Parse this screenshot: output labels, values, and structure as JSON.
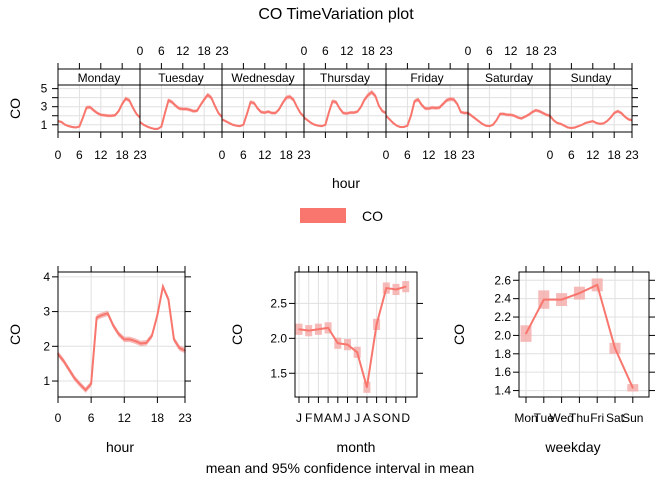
{
  "title": "CO TimeVariation plot",
  "footer": "mean and 95% confidence interval in mean",
  "legend": {
    "label": "CO",
    "position": "top-center"
  },
  "colors": {
    "line": "#F8766D",
    "ci": "#F4A9A6",
    "grid": "#E0E0E0",
    "axis": "#000000"
  },
  "chart_data": [
    {
      "type": "line",
      "name": "day-hour",
      "xlabel": "hour",
      "ylabel": "CO",
      "ylim": [
        0.2,
        5.4
      ],
      "yticks": [
        1,
        3,
        5
      ],
      "xticks": [
        0,
        6,
        12,
        18,
        23
      ],
      "grid": true,
      "ci_halfwidth": 0.15,
      "panels": [
        {
          "day": "Monday",
          "values": [
            1.4,
            1.3,
            1.0,
            0.85,
            0.75,
            0.7,
            0.8,
            1.8,
            2.9,
            2.95,
            2.6,
            2.3,
            2.1,
            2.05,
            2.0,
            2.0,
            2.05,
            2.5,
            3.3,
            3.9,
            3.7,
            2.9,
            2.2,
            1.8
          ]
        },
        {
          "day": "Tuesday",
          "values": [
            1.3,
            1.0,
            0.8,
            0.65,
            0.55,
            0.55,
            0.8,
            2.3,
            3.7,
            3.5,
            3.1,
            2.8,
            2.75,
            2.75,
            2.65,
            2.5,
            2.55,
            3.2,
            3.8,
            4.3,
            4.0,
            3.1,
            2.3,
            1.85
          ]
        },
        {
          "day": "Wednesday",
          "values": [
            1.6,
            1.4,
            1.2,
            1.0,
            0.9,
            0.85,
            1.0,
            2.2,
            3.5,
            3.4,
            2.8,
            2.4,
            2.35,
            2.45,
            2.3,
            2.3,
            2.7,
            3.4,
            4.0,
            4.1,
            3.8,
            3.0,
            2.3,
            1.9
          ]
        },
        {
          "day": "Thursday",
          "values": [
            1.8,
            1.5,
            1.2,
            1.0,
            0.9,
            0.85,
            1.0,
            2.4,
            3.6,
            3.5,
            2.8,
            2.3,
            2.25,
            2.35,
            2.35,
            2.45,
            3.0,
            3.8,
            4.3,
            4.6,
            4.2,
            3.1,
            2.5,
            2.3
          ]
        },
        {
          "day": "Friday",
          "values": [
            2.0,
            1.6,
            1.2,
            0.9,
            0.75,
            0.75,
            0.9,
            2.0,
            3.6,
            3.8,
            3.2,
            2.8,
            2.8,
            2.9,
            2.85,
            2.9,
            3.3,
            3.7,
            3.85,
            3.8,
            3.3,
            2.4,
            2.3,
            2.3
          ]
        },
        {
          "day": "Saturday",
          "values": [
            2.3,
            2.0,
            1.7,
            1.4,
            1.1,
            0.9,
            0.85,
            1.0,
            1.5,
            2.2,
            2.2,
            2.1,
            2.1,
            2.0,
            1.8,
            1.7,
            1.9,
            2.1,
            2.4,
            2.6,
            2.5,
            2.3,
            2.1,
            2.0
          ]
        },
        {
          "day": "Sunday",
          "values": [
            2.0,
            1.5,
            1.2,
            1.1,
            0.9,
            0.7,
            0.65,
            0.7,
            0.85,
            1.0,
            1.2,
            1.3,
            1.4,
            1.2,
            1.1,
            1.15,
            1.4,
            1.8,
            2.3,
            2.5,
            2.3,
            1.9,
            1.6,
            1.5
          ]
        }
      ]
    },
    {
      "type": "line",
      "name": "hour",
      "xlabel": "hour",
      "ylabel": "CO",
      "ylim": [
        0.54,
        4.14
      ],
      "yticks": [
        1,
        2,
        3,
        4
      ],
      "xticks": [
        0,
        6,
        12,
        18,
        23
      ],
      "grid": true,
      "ci_halfwidth": 0.08,
      "x": [
        0,
        1,
        2,
        3,
        4,
        5,
        6,
        7,
        8,
        9,
        10,
        11,
        12,
        13,
        14,
        15,
        16,
        17,
        18,
        19,
        20,
        21,
        22,
        23
      ],
      "values": [
        1.78,
        1.58,
        1.33,
        1.08,
        0.9,
        0.74,
        0.92,
        2.83,
        2.9,
        2.95,
        2.6,
        2.35,
        2.2,
        2.2,
        2.15,
        2.08,
        2.1,
        2.3,
        2.9,
        3.72,
        3.35,
        2.2,
        1.95,
        1.88
      ]
    },
    {
      "type": "line",
      "name": "month",
      "xlabel": "month",
      "ylabel": "CO",
      "ylim": [
        1.16,
        2.95
      ],
      "yticks": [
        1.5,
        2.0,
        2.5
      ],
      "ytick_labels": [
        "1.5",
        "2.0",
        "2.5"
      ],
      "grid": true,
      "categories": [
        "J",
        "F",
        "M",
        "A",
        "M",
        "J",
        "J",
        "A",
        "S",
        "O",
        "N",
        "D"
      ],
      "values": [
        2.13,
        2.11,
        2.13,
        2.15,
        1.93,
        1.91,
        1.8,
        1.3,
        2.2,
        2.72,
        2.7,
        2.74
      ],
      "ci_halfwidth": 0.08
    },
    {
      "type": "line",
      "name": "weekday",
      "xlabel": "weekday",
      "ylabel": "CO",
      "ylim": [
        1.33,
        2.69
      ],
      "yticks": [
        1.4,
        1.6,
        1.8,
        2.0,
        2.2,
        2.4,
        2.6
      ],
      "ytick_labels": [
        "1.4",
        "1.6",
        "1.8",
        "2.0",
        "2.2",
        "2.4",
        "2.6"
      ],
      "grid": true,
      "categories": [
        "Mon",
        "Tue",
        "Wed",
        "Thu",
        "Fri",
        "Sat",
        "Sun"
      ],
      "values": [
        2.02,
        2.39,
        2.39,
        2.46,
        2.55,
        1.86,
        1.43
      ],
      "ci_halfwidth": [
        0.09,
        0.1,
        0.07,
        0.07,
        0.07,
        0.06,
        0.04
      ]
    }
  ]
}
